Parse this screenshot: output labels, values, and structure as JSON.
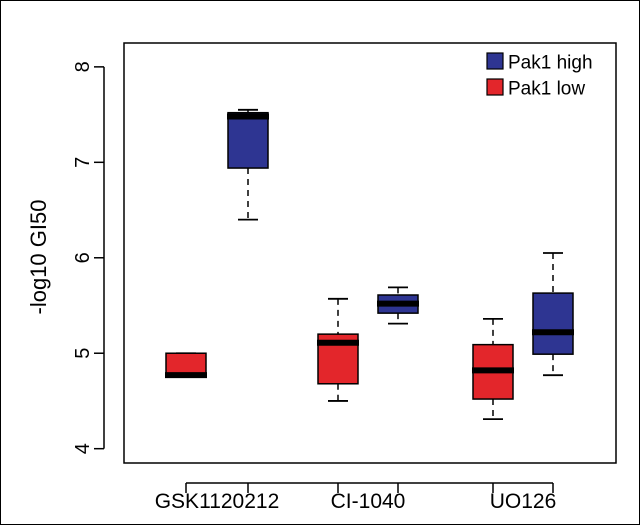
{
  "chart_data": {
    "type": "box",
    "ylabel": "-log10 GI50",
    "ylim": [
      3.85,
      8.25
    ],
    "yticks": [
      4,
      5,
      6,
      7,
      8
    ],
    "categories": [
      "GSK1120212",
      "CI-1040",
      "UO126"
    ],
    "legend": {
      "position": "top-right",
      "entries": [
        {
          "label": "Pak1 high",
          "color": "#2e3592"
        },
        {
          "label": "Pak1 low",
          "color": "#e3262b"
        }
      ]
    },
    "boxes": [
      {
        "category": "GSK1120212",
        "group": "Pak1 low",
        "color": "#e3262b",
        "whisker_low": 4.77,
        "q1": 4.77,
        "median": 4.77,
        "q3": 5.0,
        "whisker_high": 5.0
      },
      {
        "category": "GSK1120212",
        "group": "Pak1 high",
        "color": "#2e3592",
        "whisker_low": 6.4,
        "q1": 6.94,
        "median": 7.48,
        "q3": 7.52,
        "whisker_high": 7.55
      },
      {
        "category": "CI-1040",
        "group": "Pak1 low",
        "color": "#e3262b",
        "whisker_low": 4.5,
        "q1": 4.68,
        "median": 5.11,
        "q3": 5.2,
        "whisker_high": 5.57
      },
      {
        "category": "CI-1040",
        "group": "Pak1 high",
        "color": "#2e3592",
        "whisker_low": 5.31,
        "q1": 5.42,
        "median": 5.52,
        "q3": 5.61,
        "whisker_high": 5.69
      },
      {
        "category": "UO126",
        "group": "Pak1 low",
        "color": "#e3262b",
        "whisker_low": 4.31,
        "q1": 4.52,
        "median": 4.82,
        "q3": 5.09,
        "whisker_high": 5.36
      },
      {
        "category": "UO126",
        "group": "Pak1 high",
        "color": "#2e3592",
        "whisker_low": 4.77,
        "q1": 4.99,
        "median": 5.22,
        "q3": 5.63,
        "whisker_high": 6.05
      }
    ]
  }
}
